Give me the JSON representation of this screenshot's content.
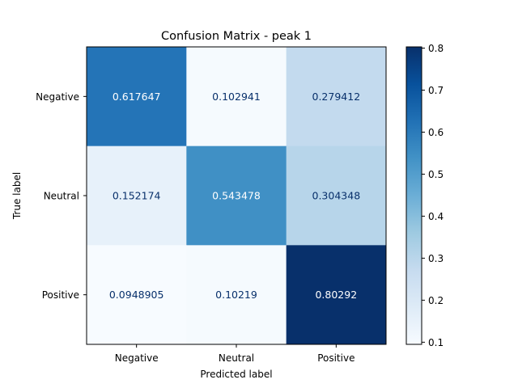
{
  "chart_data": {
    "type": "heatmap",
    "title": "Confusion Matrix - peak 1",
    "xlabel": "Predicted label",
    "ylabel": "True label",
    "x_categories": [
      "Negative",
      "Neutral",
      "Positive"
    ],
    "y_categories": [
      "Negative",
      "Neutral",
      "Positive"
    ],
    "values": [
      [
        0.617647,
        0.102941,
        0.279412
      ],
      [
        0.152174,
        0.543478,
        0.304348
      ],
      [
        0.0948905,
        0.10219,
        0.80292
      ]
    ],
    "cell_labels": [
      [
        "0.617647",
        "0.102941",
        "0.279412"
      ],
      [
        "0.152174",
        "0.543478",
        "0.304348"
      ],
      [
        "0.0948905",
        "0.10219",
        "0.80292"
      ]
    ],
    "colormap": "Blues",
    "colorbar": {
      "vmin": 0.0948905,
      "vmax": 0.80292,
      "ticks": [
        0.1,
        0.2,
        0.3,
        0.4,
        0.5,
        0.6,
        0.7,
        0.8
      ],
      "tick_labels": [
        "0.1",
        "0.2",
        "0.3",
        "0.4",
        "0.5",
        "0.6",
        "0.7",
        "0.8"
      ]
    },
    "grid": false
  }
}
